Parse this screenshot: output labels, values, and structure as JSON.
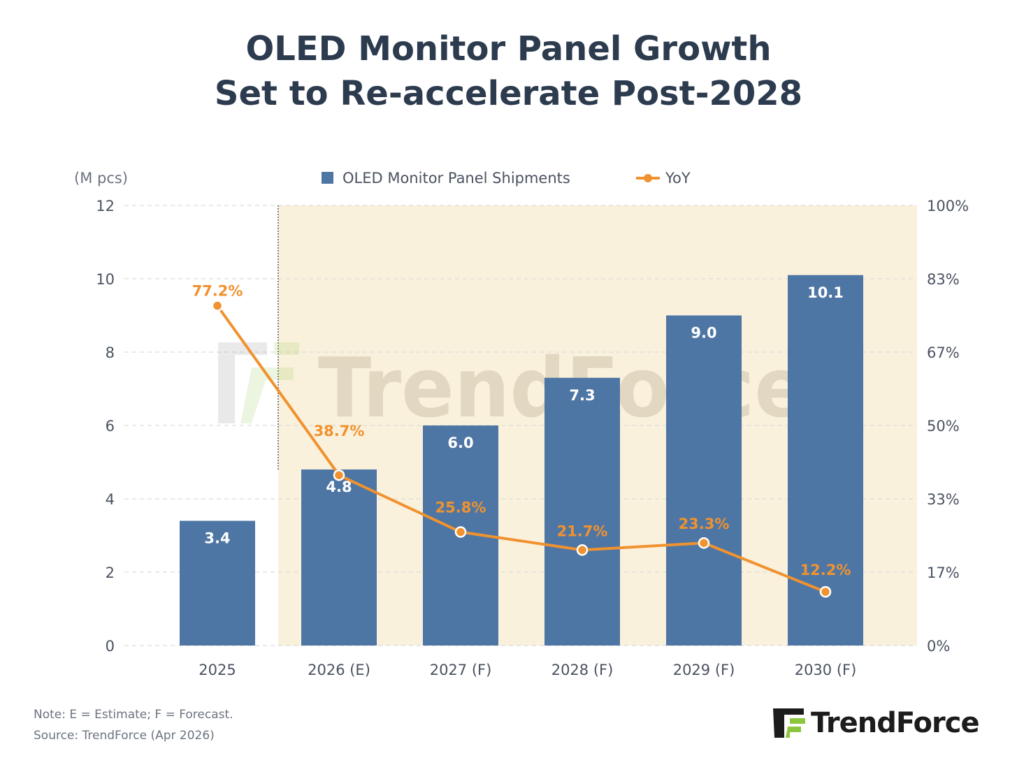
{
  "title": {
    "line1": "OLED Monitor Panel Growth",
    "line2": "Set to Re-accelerate Post-2028"
  },
  "notes": {
    "note": "Note: E = Estimate; F = Forecast.",
    "source": "Source: TrendForce (Apr 2026)"
  },
  "logo": {
    "text": "TrendForce"
  },
  "watermark": {
    "text": "TrendForce"
  },
  "colors": {
    "bar": "#4e76a4",
    "line": "#f0922f",
    "forecast_shade": "#faf1dc",
    "text": "#4a5260",
    "title": "#2d3b4f",
    "grid": "#dcdcdc"
  },
  "chart_data": {
    "type": "bar",
    "categories": [
      "2025",
      "2026 (E)",
      "2027 (F)",
      "2028 (F)",
      "2029 (F)",
      "2030 (F)"
    ],
    "y_unit_label": "(M pcs)",
    "ylim": [
      0,
      12
    ],
    "yticks": [
      0,
      2,
      4,
      6,
      8,
      10,
      12
    ],
    "y2lim": [
      0,
      100
    ],
    "y2ticks": [
      "0%",
      "17%",
      "33%",
      "50%",
      "67%",
      "83%",
      "100%"
    ],
    "legend_position": "top-center",
    "grid": true,
    "shaded_forecast_from_category": 1,
    "series": [
      {
        "name": "OLED Monitor Panel Shipments",
        "kind": "bar",
        "axis": "left",
        "values": [
          3.4,
          4.8,
          6.0,
          7.3,
          9.0,
          10.1
        ],
        "labels": [
          "3.4",
          "4.8",
          "6.0",
          "7.3",
          "9.0",
          "10.1"
        ]
      },
      {
        "name": "YoY",
        "kind": "line",
        "axis": "right",
        "values": [
          77.2,
          38.7,
          25.8,
          21.7,
          23.3,
          12.2
        ],
        "labels": [
          "77.2%",
          "38.7%",
          "25.8%",
          "21.7%",
          "23.3%",
          "12.2%"
        ]
      }
    ]
  }
}
